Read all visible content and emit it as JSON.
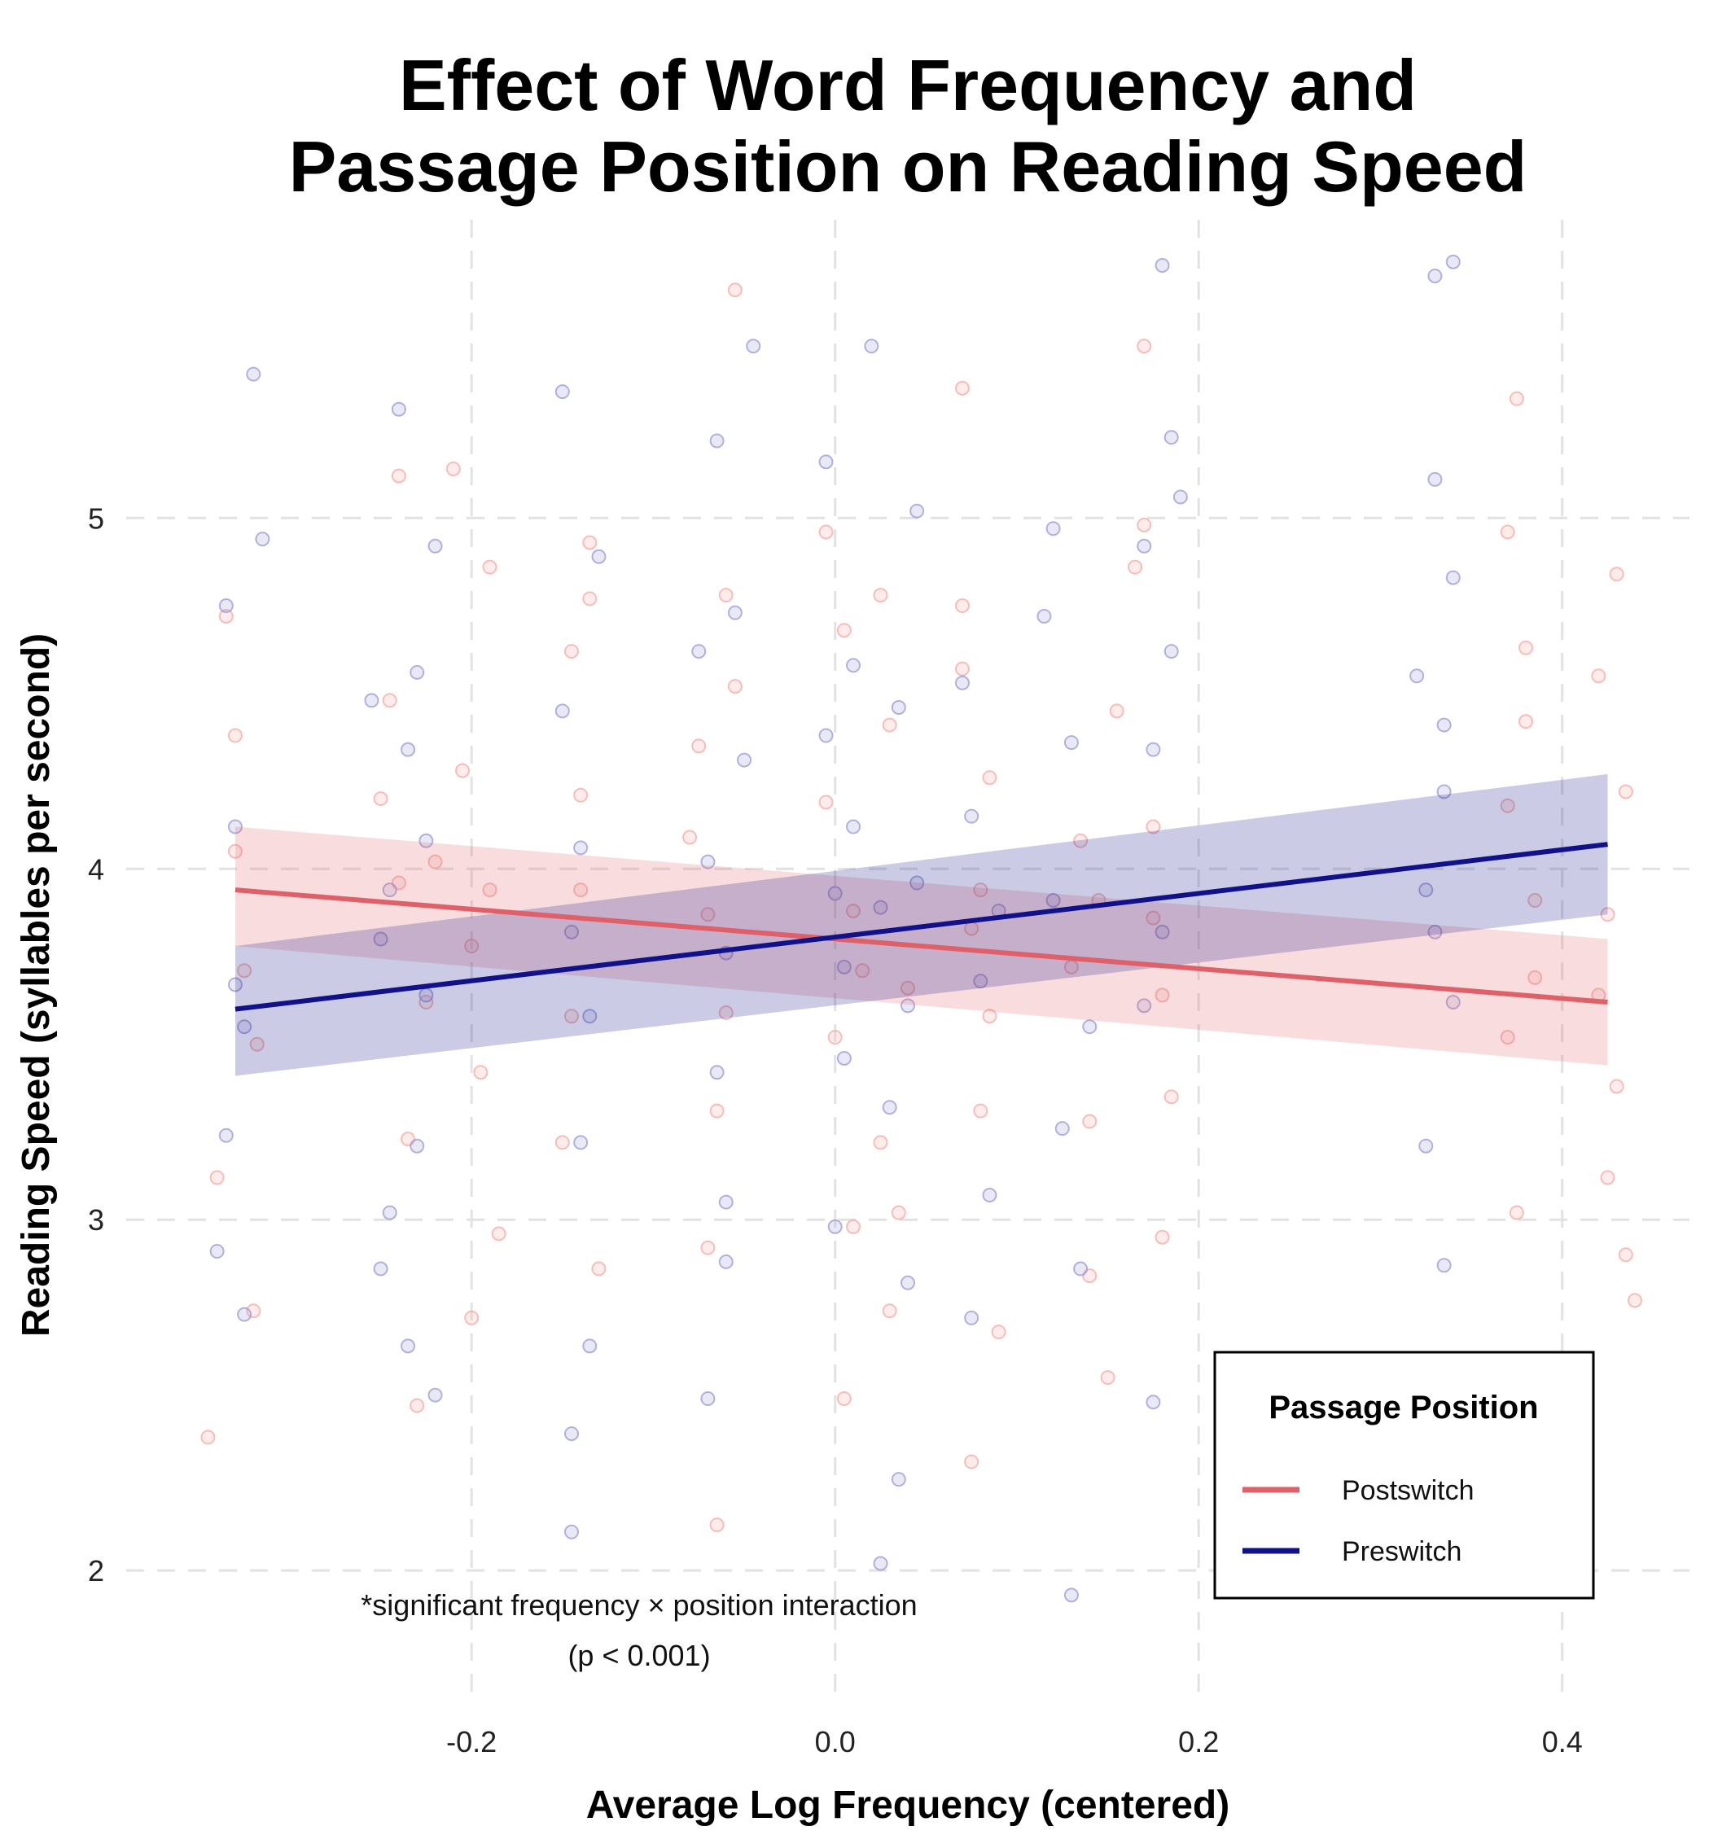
{
  "chart_data": {
    "type": "scatter",
    "title_lines": [
      "Effect of Word Frequency and",
      "Passage Position on Reading Speed"
    ],
    "xlabel": "Average Log Frequency (centered)",
    "ylabel": "Reading Speed (syllables per second)",
    "xlim": [
      -0.39,
      0.47
    ],
    "ylim": [
      1.65,
      5.85
    ],
    "x_ticks": [
      -0.2,
      0.0,
      0.2,
      0.4
    ],
    "x_tick_labels": [
      "-0.2",
      "0.0",
      "0.2",
      "0.4"
    ],
    "y_ticks": [
      2,
      3,
      4,
      5
    ],
    "y_tick_labels": [
      "2",
      "3",
      "4",
      "5"
    ],
    "grid": true,
    "legend": {
      "title": "Passage Position",
      "placement": "bottom-right",
      "entries": [
        "Postswitch",
        "Preswitch"
      ]
    },
    "annotation": [
      "*significant frequency × position interaction",
      "(p < 0.001)"
    ],
    "point_x_clusters": [
      -0.33,
      -0.25,
      -0.22,
      -0.14,
      -0.07,
      0.0,
      0.03,
      0.08,
      0.13,
      0.18,
      0.33,
      0.38,
      0.43
    ],
    "series": [
      {
        "name": "Postswitch",
        "color": "#e0606a",
        "points_color": "#f4a9a3",
        "fit": {
          "x": [
            -0.33,
            0.425
          ],
          "y": [
            3.94,
            3.62
          ]
        },
        "ci": {
          "x": [
            -0.33,
            0.425
          ],
          "lower": [
            3.78,
            3.44
          ],
          "upper": [
            4.12,
            3.8
          ]
        },
        "points": [
          [
            -0.335,
            4.72
          ],
          [
            -0.33,
            4.38
          ],
          [
            -0.325,
            3.71
          ],
          [
            -0.34,
            3.12
          ],
          [
            -0.32,
            2.74
          ],
          [
            -0.345,
            2.38
          ],
          [
            -0.33,
            4.05
          ],
          [
            -0.318,
            3.5
          ],
          [
            -0.245,
            4.48
          ],
          [
            -0.24,
            3.96
          ],
          [
            -0.235,
            3.23
          ],
          [
            -0.25,
            4.2
          ],
          [
            -0.23,
            2.47
          ],
          [
            -0.225,
            3.62
          ],
          [
            -0.24,
            5.12
          ],
          [
            -0.22,
            4.02
          ],
          [
            -0.205,
            4.28
          ],
          [
            -0.2,
            3.78
          ],
          [
            -0.19,
            4.86
          ],
          [
            -0.195,
            3.42
          ],
          [
            -0.185,
            2.96
          ],
          [
            -0.21,
            5.14
          ],
          [
            -0.2,
            2.72
          ],
          [
            -0.19,
            3.94
          ],
          [
            -0.145,
            4.62
          ],
          [
            -0.14,
            3.94
          ],
          [
            -0.135,
            4.77
          ],
          [
            -0.15,
            3.22
          ],
          [
            -0.13,
            2.86
          ],
          [
            -0.14,
            4.21
          ],
          [
            -0.145,
            3.58
          ],
          [
            -0.135,
            4.93
          ],
          [
            -0.075,
            4.35
          ],
          [
            -0.07,
            3.87
          ],
          [
            -0.065,
            3.31
          ],
          [
            -0.06,
            4.78
          ],
          [
            -0.055,
            5.65
          ],
          [
            -0.065,
            2.13
          ],
          [
            -0.07,
            2.92
          ],
          [
            -0.08,
            4.09
          ],
          [
            -0.06,
            3.59
          ],
          [
            -0.055,
            4.52
          ],
          [
            -0.005,
            4.19
          ],
          [
            0.0,
            3.52
          ],
          [
            0.005,
            4.68
          ],
          [
            0.01,
            2.98
          ],
          [
            0.015,
            3.71
          ],
          [
            -0.005,
            4.96
          ],
          [
            0.005,
            2.49
          ],
          [
            0.01,
            3.88
          ],
          [
            0.025,
            3.22
          ],
          [
            0.03,
            4.41
          ],
          [
            0.035,
            3.02
          ],
          [
            0.04,
            3.66
          ],
          [
            0.025,
            4.78
          ],
          [
            0.03,
            2.74
          ],
          [
            0.07,
            4.57
          ],
          [
            0.075,
            3.83
          ],
          [
            0.08,
            3.31
          ],
          [
            0.085,
            4.26
          ],
          [
            0.07,
            5.37
          ],
          [
            0.09,
            2.68
          ],
          [
            0.075,
            2.31
          ],
          [
            0.08,
            3.94
          ],
          [
            0.085,
            3.58
          ],
          [
            0.07,
            4.75
          ],
          [
            0.13,
            3.72
          ],
          [
            0.135,
            4.08
          ],
          [
            0.14,
            3.28
          ],
          [
            0.145,
            3.91
          ],
          [
            0.15,
            2.55
          ],
          [
            0.155,
            4.45
          ],
          [
            0.14,
            2.84
          ],
          [
            0.165,
            4.86
          ],
          [
            0.17,
            5.49
          ],
          [
            0.175,
            4.12
          ],
          [
            0.18,
            3.64
          ],
          [
            0.185,
            3.35
          ],
          [
            0.17,
            4.98
          ],
          [
            0.18,
            2.95
          ],
          [
            0.175,
            3.86
          ],
          [
            0.37,
            4.96
          ],
          [
            0.375,
            5.34
          ],
          [
            0.38,
            4.42
          ],
          [
            0.385,
            3.91
          ],
          [
            0.37,
            3.52
          ],
          [
            0.375,
            3.02
          ],
          [
            0.38,
            4.63
          ],
          [
            0.385,
            3.69
          ],
          [
            0.37,
            4.18
          ],
          [
            0.42,
            4.55
          ],
          [
            0.425,
            3.87
          ],
          [
            0.43,
            3.38
          ],
          [
            0.435,
            2.9
          ],
          [
            0.425,
            3.12
          ],
          [
            0.43,
            4.84
          ],
          [
            0.435,
            4.22
          ],
          [
            0.42,
            3.64
          ],
          [
            0.44,
            2.77
          ]
        ]
      },
      {
        "name": "Preswitch",
        "color": "#11118a",
        "points_color": "#9a9ad4",
        "fit": {
          "x": [
            -0.33,
            0.425
          ],
          "y": [
            3.6,
            4.07
          ]
        },
        "ci": {
          "x": [
            -0.33,
            0.425
          ],
          "lower": [
            3.41,
            3.87
          ],
          "upper": [
            3.78,
            4.27
          ]
        },
        "points": [
          [
            -0.335,
            4.75
          ],
          [
            -0.33,
            4.12
          ],
          [
            -0.325,
            3.55
          ],
          [
            -0.34,
            2.91
          ],
          [
            -0.32,
            5.41
          ],
          [
            -0.315,
            4.94
          ],
          [
            -0.335,
            3.24
          ],
          [
            -0.325,
            2.73
          ],
          [
            -0.33,
            3.67
          ],
          [
            -0.255,
            4.48
          ],
          [
            -0.25,
            3.8
          ],
          [
            -0.245,
            3.02
          ],
          [
            -0.24,
            5.31
          ],
          [
            -0.235,
            4.34
          ],
          [
            -0.25,
            2.86
          ],
          [
            -0.245,
            3.94
          ],
          [
            -0.23,
            4.56
          ],
          [
            -0.225,
            3.64
          ],
          [
            -0.235,
            2.64
          ],
          [
            -0.22,
            4.92
          ],
          [
            -0.23,
            3.21
          ],
          [
            -0.225,
            4.08
          ],
          [
            -0.22,
            2.5
          ],
          [
            -0.15,
            4.45
          ],
          [
            -0.145,
            3.82
          ],
          [
            -0.14,
            3.22
          ],
          [
            -0.135,
            2.64
          ],
          [
            -0.15,
            5.36
          ],
          [
            -0.145,
            2.11
          ],
          [
            -0.14,
            4.06
          ],
          [
            -0.135,
            3.58
          ],
          [
            -0.13,
            4.89
          ],
          [
            -0.145,
            2.39
          ],
          [
            -0.075,
            4.62
          ],
          [
            -0.07,
            4.02
          ],
          [
            -0.065,
            3.42
          ],
          [
            -0.06,
            2.88
          ],
          [
            -0.065,
            5.22
          ],
          [
            -0.07,
            2.49
          ],
          [
            -0.06,
            3.76
          ],
          [
            -0.05,
            4.31
          ],
          [
            -0.045,
            5.49
          ],
          [
            -0.06,
            3.05
          ],
          [
            -0.055,
            4.73
          ],
          [
            -0.005,
            4.38
          ],
          [
            0.0,
            3.93
          ],
          [
            0.005,
            3.46
          ],
          [
            0.01,
            4.58
          ],
          [
            -0.005,
            5.16
          ],
          [
            0.0,
            2.98
          ],
          [
            0.01,
            4.12
          ],
          [
            0.005,
            3.72
          ],
          [
            0.025,
            3.89
          ],
          [
            0.03,
            3.32
          ],
          [
            0.035,
            4.46
          ],
          [
            0.04,
            2.82
          ],
          [
            0.045,
            3.96
          ],
          [
            0.025,
            2.02
          ],
          [
            0.02,
            5.49
          ],
          [
            0.035,
            2.26
          ],
          [
            0.045,
            5.02
          ],
          [
            0.04,
            3.61
          ],
          [
            0.075,
            4.15
          ],
          [
            0.08,
            3.68
          ],
          [
            0.085,
            3.07
          ],
          [
            0.07,
            4.53
          ],
          [
            0.09,
            3.88
          ],
          [
            0.075,
            2.72
          ],
          [
            0.115,
            4.72
          ],
          [
            0.12,
            3.91
          ],
          [
            0.125,
            3.26
          ],
          [
            0.13,
            4.36
          ],
          [
            0.135,
            2.86
          ],
          [
            0.13,
            1.93
          ],
          [
            0.12,
            4.97
          ],
          [
            0.14,
            3.55
          ],
          [
            0.17,
            4.92
          ],
          [
            0.175,
            4.34
          ],
          [
            0.18,
            3.82
          ],
          [
            0.185,
            5.23
          ],
          [
            0.18,
            5.72
          ],
          [
            0.175,
            2.48
          ],
          [
            0.185,
            4.62
          ],
          [
            0.17,
            3.61
          ],
          [
            0.19,
            5.06
          ],
          [
            0.32,
            4.55
          ],
          [
            0.325,
            3.94
          ],
          [
            0.33,
            5.11
          ],
          [
            0.335,
            4.22
          ],
          [
            0.34,
            3.62
          ],
          [
            0.33,
            5.69
          ],
          [
            0.34,
            5.73
          ],
          [
            0.325,
            3.21
          ],
          [
            0.335,
            2.87
          ],
          [
            0.34,
            4.83
          ],
          [
            0.33,
            3.82
          ],
          [
            0.335,
            4.41
          ]
        ]
      }
    ]
  }
}
